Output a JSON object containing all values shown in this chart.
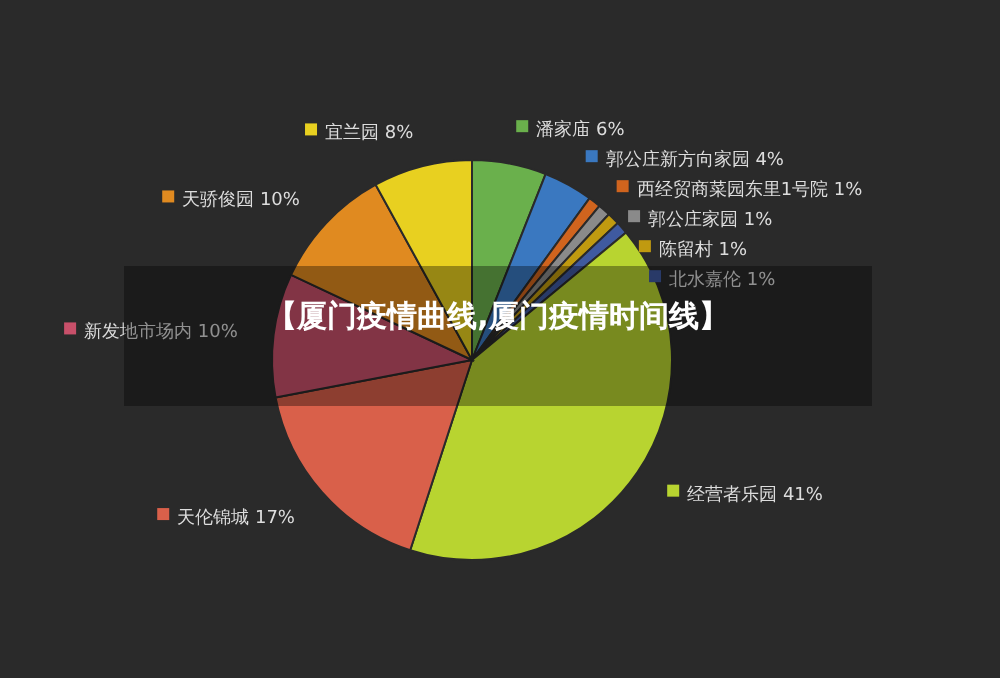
{
  "chart_data": {
    "type": "pie",
    "title": "【厦门疫情曲线,厦门疫情时间线】",
    "categories": [
      "潘家庙",
      "郭公庄新方向家园",
      "西经贸商菜园东里1号院",
      "郭公庄家园",
      "陈留村",
      "北水嘉伦",
      "经营者乐园",
      "天伦锦城",
      "新发地市场内",
      "天骄俊园",
      "宜兰园"
    ],
    "values": [
      6,
      4,
      1,
      1,
      1,
      1,
      41,
      17,
      10,
      10,
      8
    ],
    "value_labels": [
      "6%",
      "4%",
      "1%",
      "1%",
      "1%",
      "1%",
      "41%",
      "17%",
      "10%",
      "10%",
      "8%"
    ],
    "colors": [
      "#6ab04c",
      "#3a78c0",
      "#d0641e",
      "#8a8a8a",
      "#c09a10",
      "#3f5aa0",
      "#b8d430",
      "#d9604a",
      "#c8506a",
      "#e08a20",
      "#e8d020"
    ],
    "legend": true
  }
}
